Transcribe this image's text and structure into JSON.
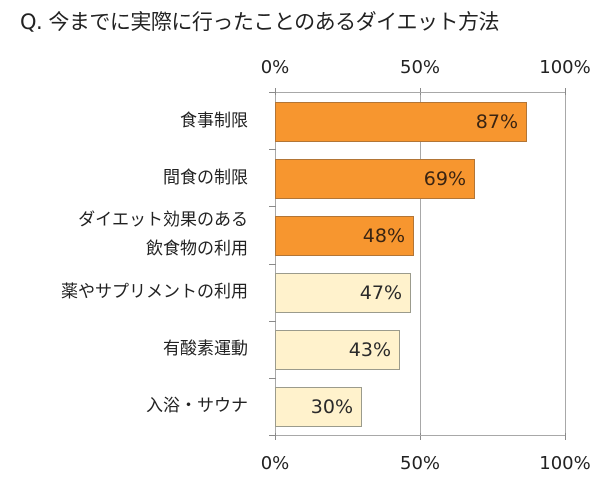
{
  "title": "Q. 今までに実際に行ったことのあるダイエット方法",
  "axis": {
    "top_ticks": [
      "0%",
      "50%",
      "100%"
    ],
    "bottom_ticks": [
      "0%",
      "50%",
      "100%"
    ]
  },
  "colors": {
    "highlight_fill": "#f7962f",
    "highlight_border": "#b27536",
    "normal_fill": "#fff2cc",
    "normal_border": "#9b9b8c",
    "grid": "#a8a8a8"
  },
  "rows": [
    {
      "label_lines": [
        "食事制限"
      ],
      "value": 87,
      "value_label": "87%",
      "highlight": true
    },
    {
      "label_lines": [
        "間食の制限"
      ],
      "value": 69,
      "value_label": "69%",
      "highlight": true
    },
    {
      "label_lines": [
        "ダイエット効果のある",
        "飲食物の利用"
      ],
      "value": 48,
      "value_label": "48%",
      "highlight": true
    },
    {
      "label_lines": [
        "薬やサプリメントの利用"
      ],
      "value": 47,
      "value_label": "47%",
      "highlight": false
    },
    {
      "label_lines": [
        "有酸素運動"
      ],
      "value": 43,
      "value_label": "43%",
      "highlight": false
    },
    {
      "label_lines": [
        "入浴・サウナ"
      ],
      "value": 30,
      "value_label": "30%",
      "highlight": false
    }
  ],
  "chart_data": {
    "type": "bar",
    "orientation": "horizontal",
    "title": "Q. 今までに実際に行ったことのあるダイエット方法",
    "categories": [
      "食事制限",
      "間食の制限",
      "ダイエット効果のある飲食物の利用",
      "薬やサプリメントの利用",
      "有酸素運動",
      "入浴・サウナ"
    ],
    "values": [
      87,
      69,
      48,
      47,
      43,
      30
    ],
    "value_labels": [
      "87%",
      "69%",
      "48%",
      "47%",
      "43%",
      "30%"
    ],
    "xlabel": "",
    "ylabel": "",
    "xlim": [
      0,
      100
    ],
    "x_ticks": [
      "0%",
      "50%",
      "100%"
    ],
    "tick_positions": "top and bottom",
    "grid": true,
    "legend": null,
    "highlighted_categories": [
      "食事制限",
      "間食の制限",
      "ダイエット効果のある飲食物の利用"
    ]
  }
}
